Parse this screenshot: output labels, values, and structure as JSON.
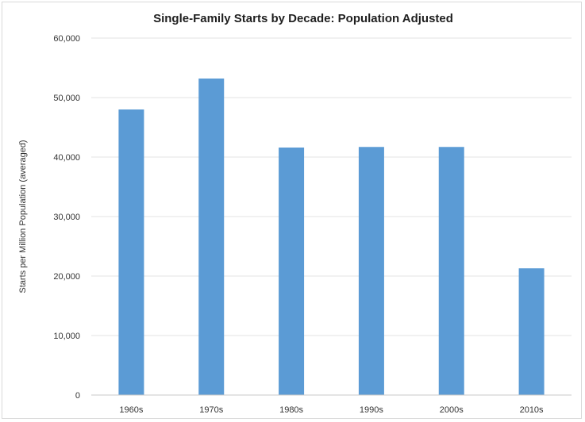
{
  "chart_data": {
    "type": "bar",
    "title": "Single-Family Starts by Decade: Population Adjusted",
    "xlabel": "",
    "ylabel": "Starts per Million Population (averaged)",
    "categories": [
      "1960s",
      "1970s",
      "1980s",
      "1990s",
      "2000s",
      "2010s"
    ],
    "values": [
      48000,
      53200,
      41600,
      41700,
      41700,
      21300
    ],
    "ylim": [
      0,
      60000
    ],
    "yticks": [
      0,
      10000,
      20000,
      30000,
      40000,
      50000,
      60000
    ],
    "ytick_labels": [
      "0",
      "10,000",
      "20,000",
      "30,000",
      "40,000",
      "50,000",
      "60,000"
    ],
    "grid": true,
    "legend": "none",
    "bar_color": "#5b9bd5"
  }
}
